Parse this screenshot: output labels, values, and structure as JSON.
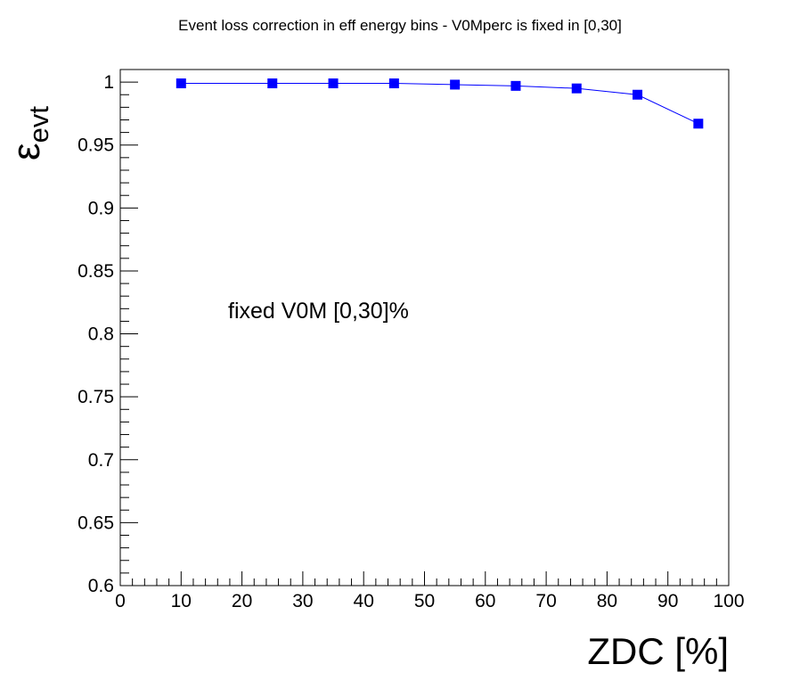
{
  "chart_data": {
    "type": "line",
    "title": "Event loss correction in eff energy bins - V0Mperc is fixed in [0,30]",
    "xlabel": "ZDC [%]",
    "ylabel": "ε",
    "ylabel_sub": "evt",
    "xlim": [
      0,
      100
    ],
    "ylim": [
      0.6,
      1.01
    ],
    "x_ticks": [
      0,
      10,
      20,
      30,
      40,
      50,
      60,
      70,
      80,
      90,
      100
    ],
    "y_ticks": [
      0.6,
      0.65,
      0.7,
      0.75,
      0.8,
      0.85,
      0.9,
      0.95,
      1
    ],
    "y_tick_labels": [
      "0.6",
      "0.65",
      "0.7",
      "0.75",
      "0.8",
      "0.85",
      "0.9",
      "0.95",
      "1"
    ],
    "grid": false,
    "legend": "none",
    "annotation": "fixed V0M [0,30]%",
    "series": [
      {
        "color": "#0000ff",
        "marker": "square",
        "x": [
          10,
          25,
          35,
          45,
          55,
          65,
          75,
          85,
          95
        ],
        "y": [
          0.999,
          0.999,
          0.999,
          0.999,
          0.998,
          0.997,
          0.995,
          0.99,
          0.967
        ]
      }
    ]
  }
}
